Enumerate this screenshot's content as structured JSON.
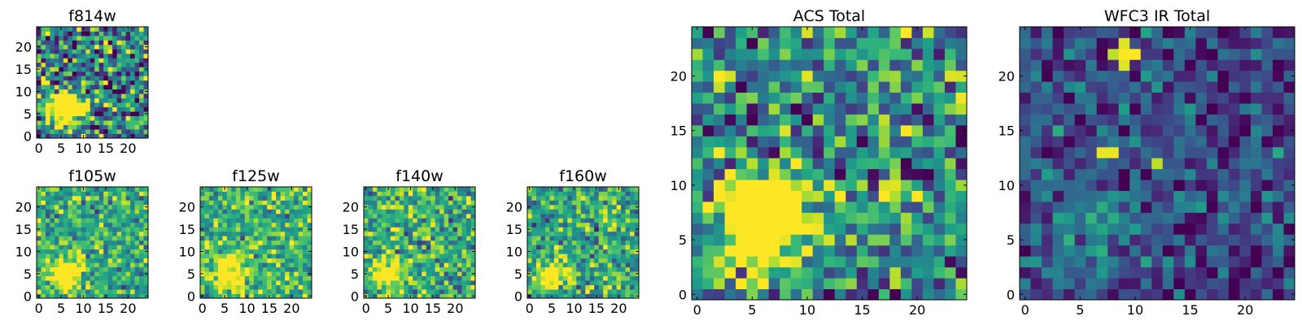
{
  "chart_data": [
    {
      "type": "heatmap",
      "title": "f814w",
      "x_ticks": [
        "0",
        "5",
        "10",
        "15",
        "20"
      ],
      "y_ticks": [
        "0",
        "5",
        "10",
        "15",
        "20"
      ],
      "xlim": [
        0,
        25
      ],
      "ylim": [
        0,
        25
      ],
      "grid": false,
      "colormap": "viridis",
      "source": {
        "x": 6,
        "y": 6,
        "sigma": 2.2,
        "amp": 1.6
      },
      "noise": 0.6,
      "base": 0.45,
      "seed": 11
    },
    {
      "type": "heatmap",
      "title": "f105w",
      "x_ticks": [
        "0",
        "5",
        "10",
        "15",
        "20"
      ],
      "y_ticks": [
        "0",
        "5",
        "10",
        "15",
        "20"
      ],
      "xlim": [
        0,
        25
      ],
      "ylim": [
        0,
        25
      ],
      "grid": false,
      "colormap": "viridis",
      "source": {
        "x": 6,
        "y": 5,
        "sigma": 2.5,
        "amp": 0.7
      },
      "noise": 0.35,
      "base": 0.62,
      "seed": 23
    },
    {
      "type": "heatmap",
      "title": "f125w",
      "x_ticks": [
        "0",
        "5",
        "10",
        "15",
        "20"
      ],
      "y_ticks": [
        "0",
        "5",
        "10",
        "15",
        "20"
      ],
      "xlim": [
        0,
        25
      ],
      "ylim": [
        0,
        25
      ],
      "grid": false,
      "colormap": "viridis",
      "source": {
        "x": 6,
        "y": 5,
        "sigma": 2.5,
        "amp": 0.6
      },
      "noise": 0.35,
      "base": 0.66,
      "seed": 37
    },
    {
      "type": "heatmap",
      "title": "f140w",
      "x_ticks": [
        "0",
        "5",
        "10",
        "15",
        "20"
      ],
      "y_ticks": [
        "0",
        "5",
        "10",
        "15",
        "20"
      ],
      "xlim": [
        0,
        25
      ],
      "ylim": [
        0,
        25
      ],
      "grid": false,
      "colormap": "viridis",
      "source": {
        "x": 5,
        "y": 5,
        "sigma": 2.5,
        "amp": 0.55
      },
      "noise": 0.38,
      "base": 0.62,
      "seed": 41
    },
    {
      "type": "heatmap",
      "title": "f160w",
      "x_ticks": [
        "0",
        "5",
        "10",
        "15",
        "20"
      ],
      "y_ticks": [
        "0",
        "5",
        "10",
        "15",
        "20"
      ],
      "xlim": [
        0,
        25
      ],
      "ylim": [
        0,
        25
      ],
      "grid": false,
      "colormap": "viridis",
      "source": {
        "x": 5,
        "y": 5,
        "sigma": 2.2,
        "amp": 0.8
      },
      "noise": 0.38,
      "base": 0.6,
      "seed": 53
    },
    {
      "type": "heatmap",
      "title": "ACS Total",
      "x_ticks": [
        "0",
        "5",
        "10",
        "15",
        "20"
      ],
      "y_ticks": [
        "0",
        "5",
        "10",
        "15",
        "20"
      ],
      "xlim": [
        0,
        25
      ],
      "ylim": [
        0,
        25
      ],
      "grid": false,
      "colormap": "viridis",
      "source": {
        "x": 6,
        "y": 7,
        "sigma": 2.6,
        "amp": 1.5
      },
      "noise": 0.5,
      "base": 0.5,
      "seed": 67
    },
    {
      "type": "heatmap",
      "title": "WFC3 IR Total",
      "x_ticks": [
        "0",
        "5",
        "10",
        "15",
        "20"
      ],
      "y_ticks": [
        "0",
        "5",
        "10",
        "15",
        "20"
      ],
      "xlim": [
        0,
        25
      ],
      "ylim": [
        0,
        25
      ],
      "grid": false,
      "colormap": "viridis",
      "source": {
        "x": 6,
        "y": 6,
        "sigma": 3.0,
        "amp": 0.25
      },
      "noise": 0.3,
      "base": 0.22,
      "seed": 79,
      "hotspots": [
        {
          "x": 9,
          "y": 22,
          "v": 1.0
        },
        {
          "x": 10,
          "y": 22,
          "v": 1.0
        },
        {
          "x": 9,
          "y": 23,
          "v": 0.95
        },
        {
          "x": 9,
          "y": 21,
          "v": 0.95
        },
        {
          "x": 8,
          "y": 22,
          "v": 0.9
        },
        {
          "x": 7,
          "y": 13,
          "v": 0.97
        },
        {
          "x": 8,
          "y": 13,
          "v": 0.97
        },
        {
          "x": 12,
          "y": 12,
          "v": 0.9
        }
      ]
    }
  ]
}
